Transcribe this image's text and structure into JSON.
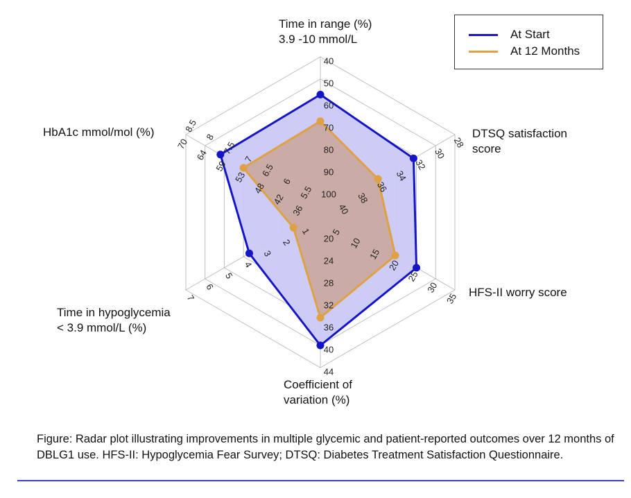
{
  "chart_data": {
    "type": "radar",
    "title": "",
    "rings": 7,
    "grid": true,
    "legend_position": "top-right",
    "axes": [
      {
        "key": "tir",
        "label_lines": [
          "Time in range (%)",
          "3.9 -10 mmol/L"
        ],
        "ticks": [
          "100",
          "90",
          "80",
          "70",
          "60",
          "50",
          "40"
        ],
        "range": [
          100,
          40
        ],
        "direction": "inverted"
      },
      {
        "key": "dtsq",
        "label_lines": [
          "DTSQ satisfaction",
          "score"
        ],
        "ticks": [
          "40",
          "38",
          "36",
          "34",
          "32",
          "30",
          "28"
        ],
        "range": [
          40,
          28
        ],
        "direction": "inverted"
      },
      {
        "key": "hfs",
        "label_lines": [
          "HFS-II worry score"
        ],
        "ticks": [
          "5",
          "10",
          "15",
          "20",
          "25",
          "30",
          "35"
        ],
        "range": [
          5,
          35
        ],
        "direction": "normal"
      },
      {
        "key": "cv",
        "label_lines": [
          "Coefficient of",
          "variation (%)"
        ],
        "ticks": [
          "20",
          "24",
          "28",
          "32",
          "36",
          "40",
          "44"
        ],
        "range": [
          20,
          44
        ],
        "direction": "normal"
      },
      {
        "key": "hypo",
        "label_lines": [
          "Time in hypoglycemia",
          "< 3.9 mmol/L (%)"
        ],
        "ticks": [
          "1",
          "2",
          "3",
          "4",
          "5",
          "6",
          "7"
        ],
        "range": [
          1,
          7
        ],
        "direction": "normal"
      },
      {
        "key": "hba1c",
        "label_lines": [
          "HbA1c mmol/mol (%)"
        ],
        "ticks": [
          "5.5",
          "6",
          "6.5",
          "7",
          "7.5",
          "8",
          "8.5"
        ],
        "secondary_ticks": [
          "36",
          "42",
          "48",
          "53",
          "59",
          "64",
          "70"
        ],
        "range": [
          5.5,
          8.5
        ],
        "direction": "normal"
      }
    ],
    "series": [
      {
        "name": "At Start",
        "color": "#1414c8",
        "fill": "#c9c9f5",
        "values": [
          57,
          32.3,
          25,
          40,
          3.7,
          7.6
        ]
      },
      {
        "name": "At 12 Months",
        "color": "#e0a044",
        "fill": "#c9a596",
        "values": [
          69,
          36,
          19.5,
          35,
          1.4,
          7.0
        ]
      }
    ]
  },
  "legend": {
    "items": [
      {
        "label": "At Start",
        "color": "#1414c8"
      },
      {
        "label": "At 12 Months",
        "color": "#e0a044"
      }
    ]
  },
  "caption": {
    "text": "Figure: Radar plot illustrating improvements in multiple glycemic and patient-reported outcomes over 12 months of DBLG1 use. HFS-II: Hypoglycemia Fear Survey; DTSQ: Diabetes Treatment Satisfaction Questionnaire."
  }
}
